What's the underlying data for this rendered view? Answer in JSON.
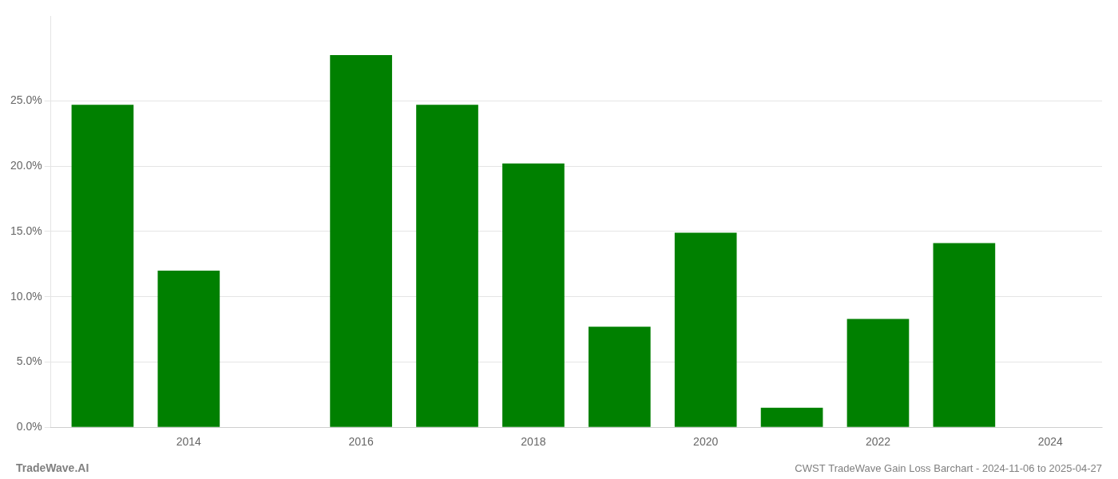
{
  "chart_data": {
    "type": "bar",
    "x": [
      2013,
      2014,
      2015,
      2016,
      2017,
      2018,
      2019,
      2020,
      2021,
      2022,
      2023,
      2024
    ],
    "values": [
      0.247,
      0.12,
      0.0,
      0.285,
      0.247,
      0.202,
      0.077,
      0.149,
      0.015,
      0.083,
      0.141,
      0.0
    ],
    "color": "#008000",
    "xlim": [
      2012.4,
      2024.6
    ],
    "xticks": [
      2014,
      2016,
      2018,
      2020,
      2022,
      2024
    ],
    "ylim": [
      0,
      0.315
    ],
    "yticks": [
      {
        "value": 0.0,
        "label": "0.0%"
      },
      {
        "value": 0.05,
        "label": "5.0%"
      },
      {
        "value": 0.1,
        "label": "10.0%"
      },
      {
        "value": 0.15,
        "label": "15.0%"
      },
      {
        "value": 0.2,
        "label": "20.0%"
      },
      {
        "value": 0.25,
        "label": "25.0%"
      }
    ],
    "grid": true,
    "annotations": [
      "TradeWave.AI",
      "CWST TradeWave Gain Loss Barchart - 2024-11-06 to 2025-04-27"
    ]
  }
}
